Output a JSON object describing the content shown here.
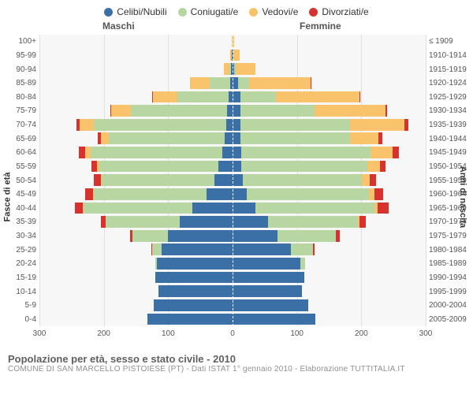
{
  "legend": {
    "items": [
      {
        "label": "Celibi/Nubili",
        "color": "#3b70a6"
      },
      {
        "label": "Coniugati/e",
        "color": "#b7d6a2"
      },
      {
        "label": "Vedovi/e",
        "color": "#f9c36b"
      },
      {
        "label": "Divorziati/e",
        "color": "#d8322f"
      }
    ]
  },
  "headers": {
    "male": "Maschi",
    "female": "Femmine",
    "yh_first": "≤ 1909"
  },
  "axes": {
    "y_left_title": "Fasce di età",
    "y_right_title": "Anni di nascita",
    "x_ticks": [
      300,
      200,
      100,
      0,
      100,
      200,
      300
    ],
    "x_max": 300
  },
  "colors": {
    "celibi": "#3b70a6",
    "coniugati": "#b7d6a2",
    "vedovi": "#f9c36b",
    "divorziati": "#d8322f",
    "grid": "#e0e0e0",
    "plot_bg": "#f7f7f7"
  },
  "rows": [
    {
      "age": "100+",
      "year": "≤ 1909",
      "m": {
        "c": 0,
        "co": 0,
        "v": 1,
        "d": 0
      },
      "f": {
        "c": 0,
        "co": 0,
        "v": 2,
        "d": 0
      }
    },
    {
      "age": "95-99",
      "year": "1910-1914",
      "m": {
        "c": 1,
        "co": 0,
        "v": 3,
        "d": 0
      },
      "f": {
        "c": 1,
        "co": 0,
        "v": 10,
        "d": 0
      }
    },
    {
      "age": "90-94",
      "year": "1915-1919",
      "m": {
        "c": 2,
        "co": 3,
        "v": 8,
        "d": 0
      },
      "f": {
        "c": 3,
        "co": 2,
        "v": 30,
        "d": 0
      }
    },
    {
      "age": "85-89",
      "year": "1920-1924",
      "m": {
        "c": 4,
        "co": 32,
        "v": 30,
        "d": 0
      },
      "f": {
        "c": 8,
        "co": 18,
        "v": 95,
        "d": 1
      }
    },
    {
      "age": "80-84",
      "year": "1925-1929",
      "m": {
        "c": 6,
        "co": 80,
        "v": 38,
        "d": 1
      },
      "f": {
        "c": 12,
        "co": 55,
        "v": 130,
        "d": 2
      }
    },
    {
      "age": "75-79",
      "year": "1930-1934",
      "m": {
        "c": 8,
        "co": 150,
        "v": 30,
        "d": 2
      },
      "f": {
        "c": 12,
        "co": 115,
        "v": 110,
        "d": 3
      }
    },
    {
      "age": "70-74",
      "year": "1935-1939",
      "m": {
        "c": 10,
        "co": 205,
        "v": 22,
        "d": 5
      },
      "f": {
        "c": 12,
        "co": 170,
        "v": 85,
        "d": 6
      }
    },
    {
      "age": "65-69",
      "year": "1940-1944",
      "m": {
        "c": 12,
        "co": 180,
        "v": 12,
        "d": 6
      },
      "f": {
        "c": 12,
        "co": 170,
        "v": 45,
        "d": 6
      }
    },
    {
      "age": "60-64",
      "year": "1945-1949",
      "m": {
        "c": 16,
        "co": 205,
        "v": 8,
        "d": 10
      },
      "f": {
        "c": 14,
        "co": 200,
        "v": 35,
        "d": 10
      }
    },
    {
      "age": "55-59",
      "year": "1950-1954",
      "m": {
        "c": 22,
        "co": 185,
        "v": 4,
        "d": 8
      },
      "f": {
        "c": 14,
        "co": 195,
        "v": 20,
        "d": 8
      }
    },
    {
      "age": "50-54",
      "year": "1955-1959",
      "m": {
        "c": 28,
        "co": 175,
        "v": 2,
        "d": 10
      },
      "f": {
        "c": 16,
        "co": 185,
        "v": 12,
        "d": 10
      }
    },
    {
      "age": "45-49",
      "year": "1960-1964",
      "m": {
        "c": 40,
        "co": 175,
        "v": 2,
        "d": 12
      },
      "f": {
        "c": 22,
        "co": 190,
        "v": 8,
        "d": 14
      }
    },
    {
      "age": "40-44",
      "year": "1965-1969",
      "m": {
        "c": 62,
        "co": 170,
        "v": 1,
        "d": 12
      },
      "f": {
        "c": 35,
        "co": 185,
        "v": 5,
        "d": 18
      }
    },
    {
      "age": "35-39",
      "year": "1970-1974",
      "m": {
        "c": 82,
        "co": 115,
        "v": 0,
        "d": 8
      },
      "f": {
        "c": 55,
        "co": 140,
        "v": 2,
        "d": 10
      }
    },
    {
      "age": "30-34",
      "year": "1975-1979",
      "m": {
        "c": 100,
        "co": 55,
        "v": 0,
        "d": 4
      },
      "f": {
        "c": 70,
        "co": 90,
        "v": 0,
        "d": 6
      }
    },
    {
      "age": "25-29",
      "year": "1980-1984",
      "m": {
        "c": 110,
        "co": 15,
        "v": 0,
        "d": 1
      },
      "f": {
        "c": 90,
        "co": 35,
        "v": 0,
        "d": 2
      }
    },
    {
      "age": "20-24",
      "year": "1985-1989",
      "m": {
        "c": 118,
        "co": 2,
        "v": 0,
        "d": 0
      },
      "f": {
        "c": 105,
        "co": 8,
        "v": 0,
        "d": 0
      }
    },
    {
      "age": "15-19",
      "year": "1990-1994",
      "m": {
        "c": 120,
        "co": 0,
        "v": 0,
        "d": 0
      },
      "f": {
        "c": 112,
        "co": 0,
        "v": 0,
        "d": 0
      }
    },
    {
      "age": "10-14",
      "year": "1995-1999",
      "m": {
        "c": 115,
        "co": 0,
        "v": 0,
        "d": 0
      },
      "f": {
        "c": 108,
        "co": 0,
        "v": 0,
        "d": 0
      }
    },
    {
      "age": "5-9",
      "year": "2000-2004",
      "m": {
        "c": 122,
        "co": 0,
        "v": 0,
        "d": 0
      },
      "f": {
        "c": 118,
        "co": 0,
        "v": 0,
        "d": 0
      }
    },
    {
      "age": "0-4",
      "year": "2005-2009",
      "m": {
        "c": 132,
        "co": 0,
        "v": 0,
        "d": 0
      },
      "f": {
        "c": 128,
        "co": 0,
        "v": 0,
        "d": 0
      }
    }
  ],
  "footer": {
    "title": "Popolazione per età, sesso e stato civile - 2010",
    "sub": "COMUNE DI SAN MARCELLO PISTOIESE (PT) - Dati ISTAT 1° gennaio 2010 - Elaborazione TUTTITALIA.IT"
  }
}
